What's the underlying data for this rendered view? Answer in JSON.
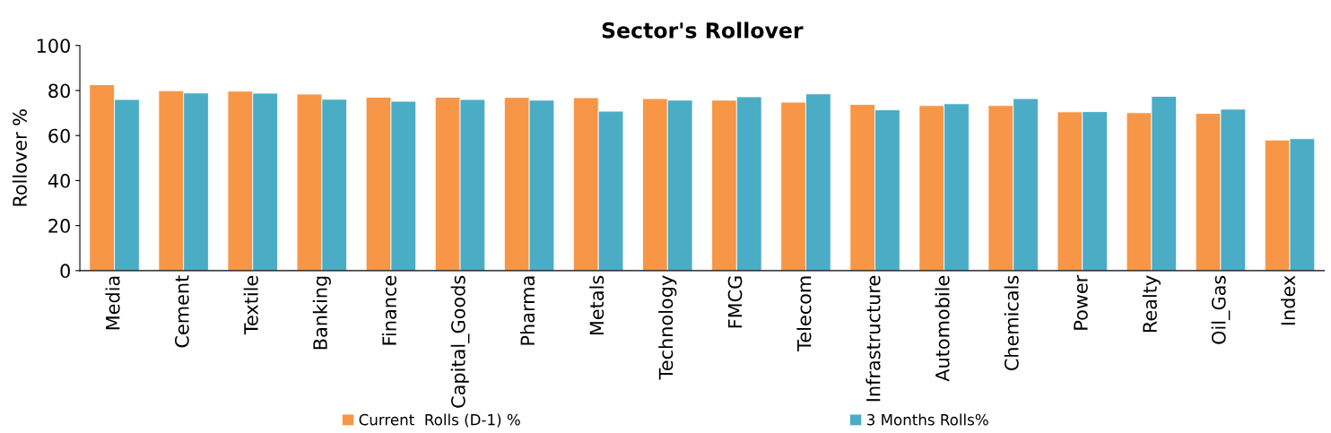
{
  "chart_data": {
    "type": "bar",
    "title": "Sector's Rollover",
    "ylabel": "Rollover %",
    "categories": [
      "Media",
      "Cement",
      "Textile",
      "Banking",
      "Finance",
      "Capital_Goods",
      "Pharma",
      "Metals",
      "Technology",
      "FMCG",
      "Telecom",
      "Infrastructure",
      "Automobile",
      "Chemicals",
      "Power",
      "Realty",
      "Oil_Gas",
      "Index"
    ],
    "series": [
      {
        "name": "Current  Rolls (D-1) %",
        "color": "#f79646",
        "values": [
          82.6,
          79.9,
          79.7,
          78.4,
          77.0,
          77.0,
          76.9,
          76.8,
          76.4,
          75.7,
          74.8,
          73.8,
          73.3,
          73.3,
          70.5,
          70.1,
          69.8,
          58.0
        ]
      },
      {
        "name": "3 Months Rolls%",
        "color": "#4bacc6",
        "values": [
          76.0,
          78.9,
          78.8,
          76.1,
          75.2,
          76.0,
          75.7,
          70.8,
          75.7,
          77.2,
          78.5,
          71.4,
          74.1,
          76.4,
          70.6,
          77.4,
          71.7,
          58.6
        ]
      }
    ],
    "ylim": [
      0,
      100
    ],
    "yticks": [
      0,
      20,
      40,
      60,
      80,
      100
    ],
    "grid": false,
    "legend": "bottom"
  }
}
